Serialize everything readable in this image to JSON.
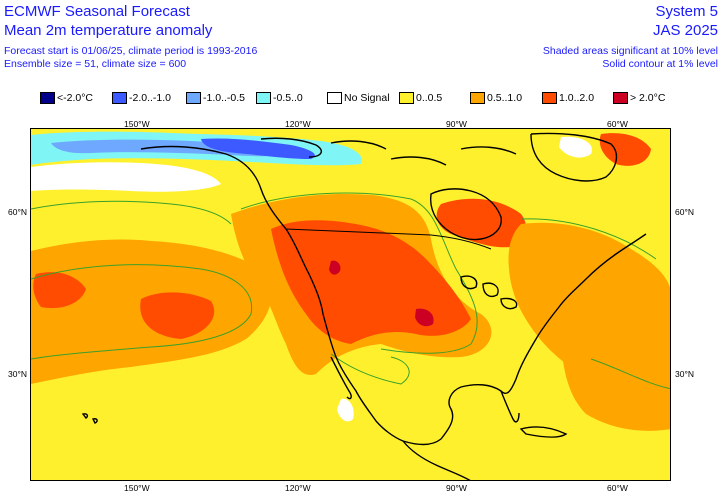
{
  "header": {
    "title": "ECMWF Seasonal Forecast",
    "subtitle": "Mean 2m temperature anomaly",
    "line3": "Forecast start is 01/06/25, climate period is 1993-2016",
    "line4": "Ensemble size = 51, climate size = 600",
    "system": "System 5",
    "season": "JAS 2025",
    "note1": "Shaded areas significant at 10% level",
    "note2": "Solid contour at 1% level"
  },
  "legend": [
    {
      "label": "<-2.0°C",
      "color": "#00008b"
    },
    {
      "label": "-2.0..-1.0",
      "color": "#3c5aff"
    },
    {
      "label": "-1.0..-0.5",
      "color": "#6fa8ff"
    },
    {
      "label": "-0.5..0",
      "color": "#7ff5f5"
    },
    {
      "label": "No Signal",
      "color": "#ffffff"
    },
    {
      "label": "0..0.5",
      "color": "#fff02e"
    },
    {
      "label": "0.5..1.0",
      "color": "#ffa500"
    },
    {
      "label": "1.0..2.0",
      "color": "#ff4c00"
    },
    {
      "label": "> 2.0°C",
      "color": "#cc0022"
    }
  ],
  "axes": {
    "top_lon": [
      "150°W",
      "120°W",
      "90°W",
      "60°W"
    ],
    "bottom_lon": [
      "150°W",
      "120°W",
      "90°W",
      "60°W"
    ],
    "left_lat": [
      "60°N",
      "30°N"
    ],
    "right_lat": [
      "60°N",
      "30°N"
    ]
  }
}
